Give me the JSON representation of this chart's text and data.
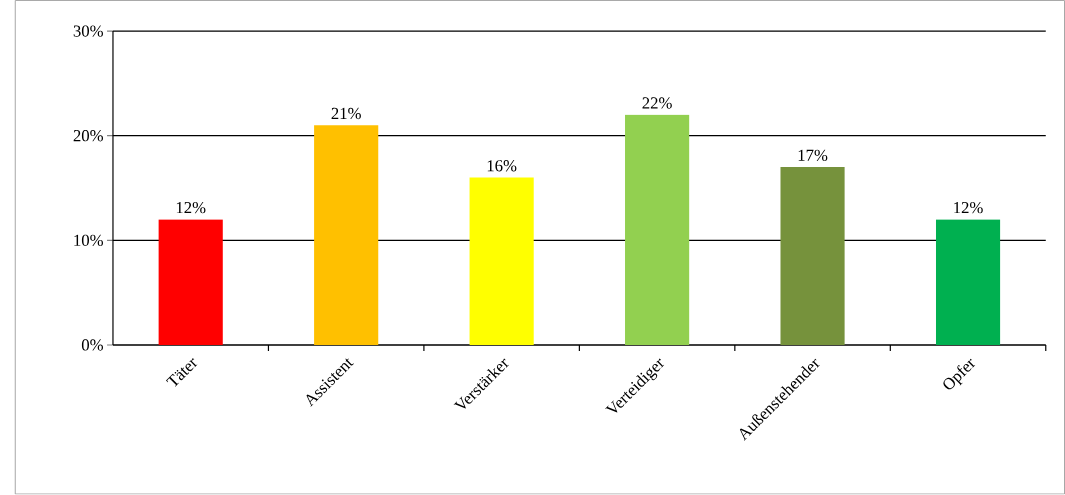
{
  "chart_data": {
    "type": "bar",
    "categories": [
      "Täter",
      "Assistent",
      "Verstärker",
      "Verteidiger",
      "Außenstehender",
      "Opfer"
    ],
    "values": [
      12,
      21,
      16,
      22,
      17,
      12
    ],
    "value_labels": [
      "12%",
      "21%",
      "16%",
      "22%",
      "17%",
      "12%"
    ],
    "colors": [
      "#ff0000",
      "#ffc000",
      "#ffff00",
      "#92d050",
      "#76923c",
      "#00b050"
    ],
    "ylim": [
      0,
      30
    ],
    "yticks": [
      {
        "value": 0,
        "label": "0%"
      },
      {
        "value": 10,
        "label": "10%"
      },
      {
        "value": 20,
        "label": "20%"
      },
      {
        "value": 30,
        "label": "30%"
      }
    ],
    "grid": "y"
  }
}
